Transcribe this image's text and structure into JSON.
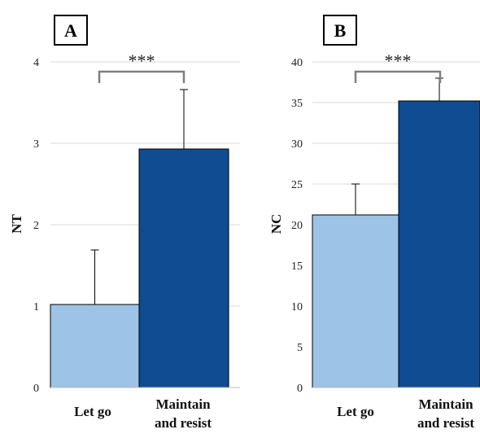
{
  "chart_data": [
    {
      "type": "bar",
      "panel": "A",
      "ylabel": "NT",
      "categories": [
        "Let go",
        [
          "Maintain",
          "and resist"
        ]
      ],
      "values": [
        1.02,
        2.93
      ],
      "errors": [
        0.67,
        0.73
      ],
      "ylim": [
        0,
        4
      ],
      "yticks": [
        "0",
        "1",
        "2",
        "3",
        "4"
      ],
      "grid": true,
      "significance": "***",
      "colors": [
        "#9dc3e6",
        "#0f4c92"
      ]
    },
    {
      "type": "bar",
      "panel": "B",
      "ylabel": "NC",
      "categories": [
        "Let go",
        [
          "Maintain",
          "and resist"
        ]
      ],
      "values": [
        21.2,
        35.2
      ],
      "errors": [
        3.8,
        2.8
      ],
      "ylim": [
        0,
        40
      ],
      "yticks": [
        "0",
        "5",
        "10",
        "15",
        "20",
        "25",
        "30",
        "35",
        "40"
      ],
      "grid": true,
      "significance": "***",
      "colors": [
        "#9dc3e6",
        "#0f4c92"
      ]
    }
  ]
}
